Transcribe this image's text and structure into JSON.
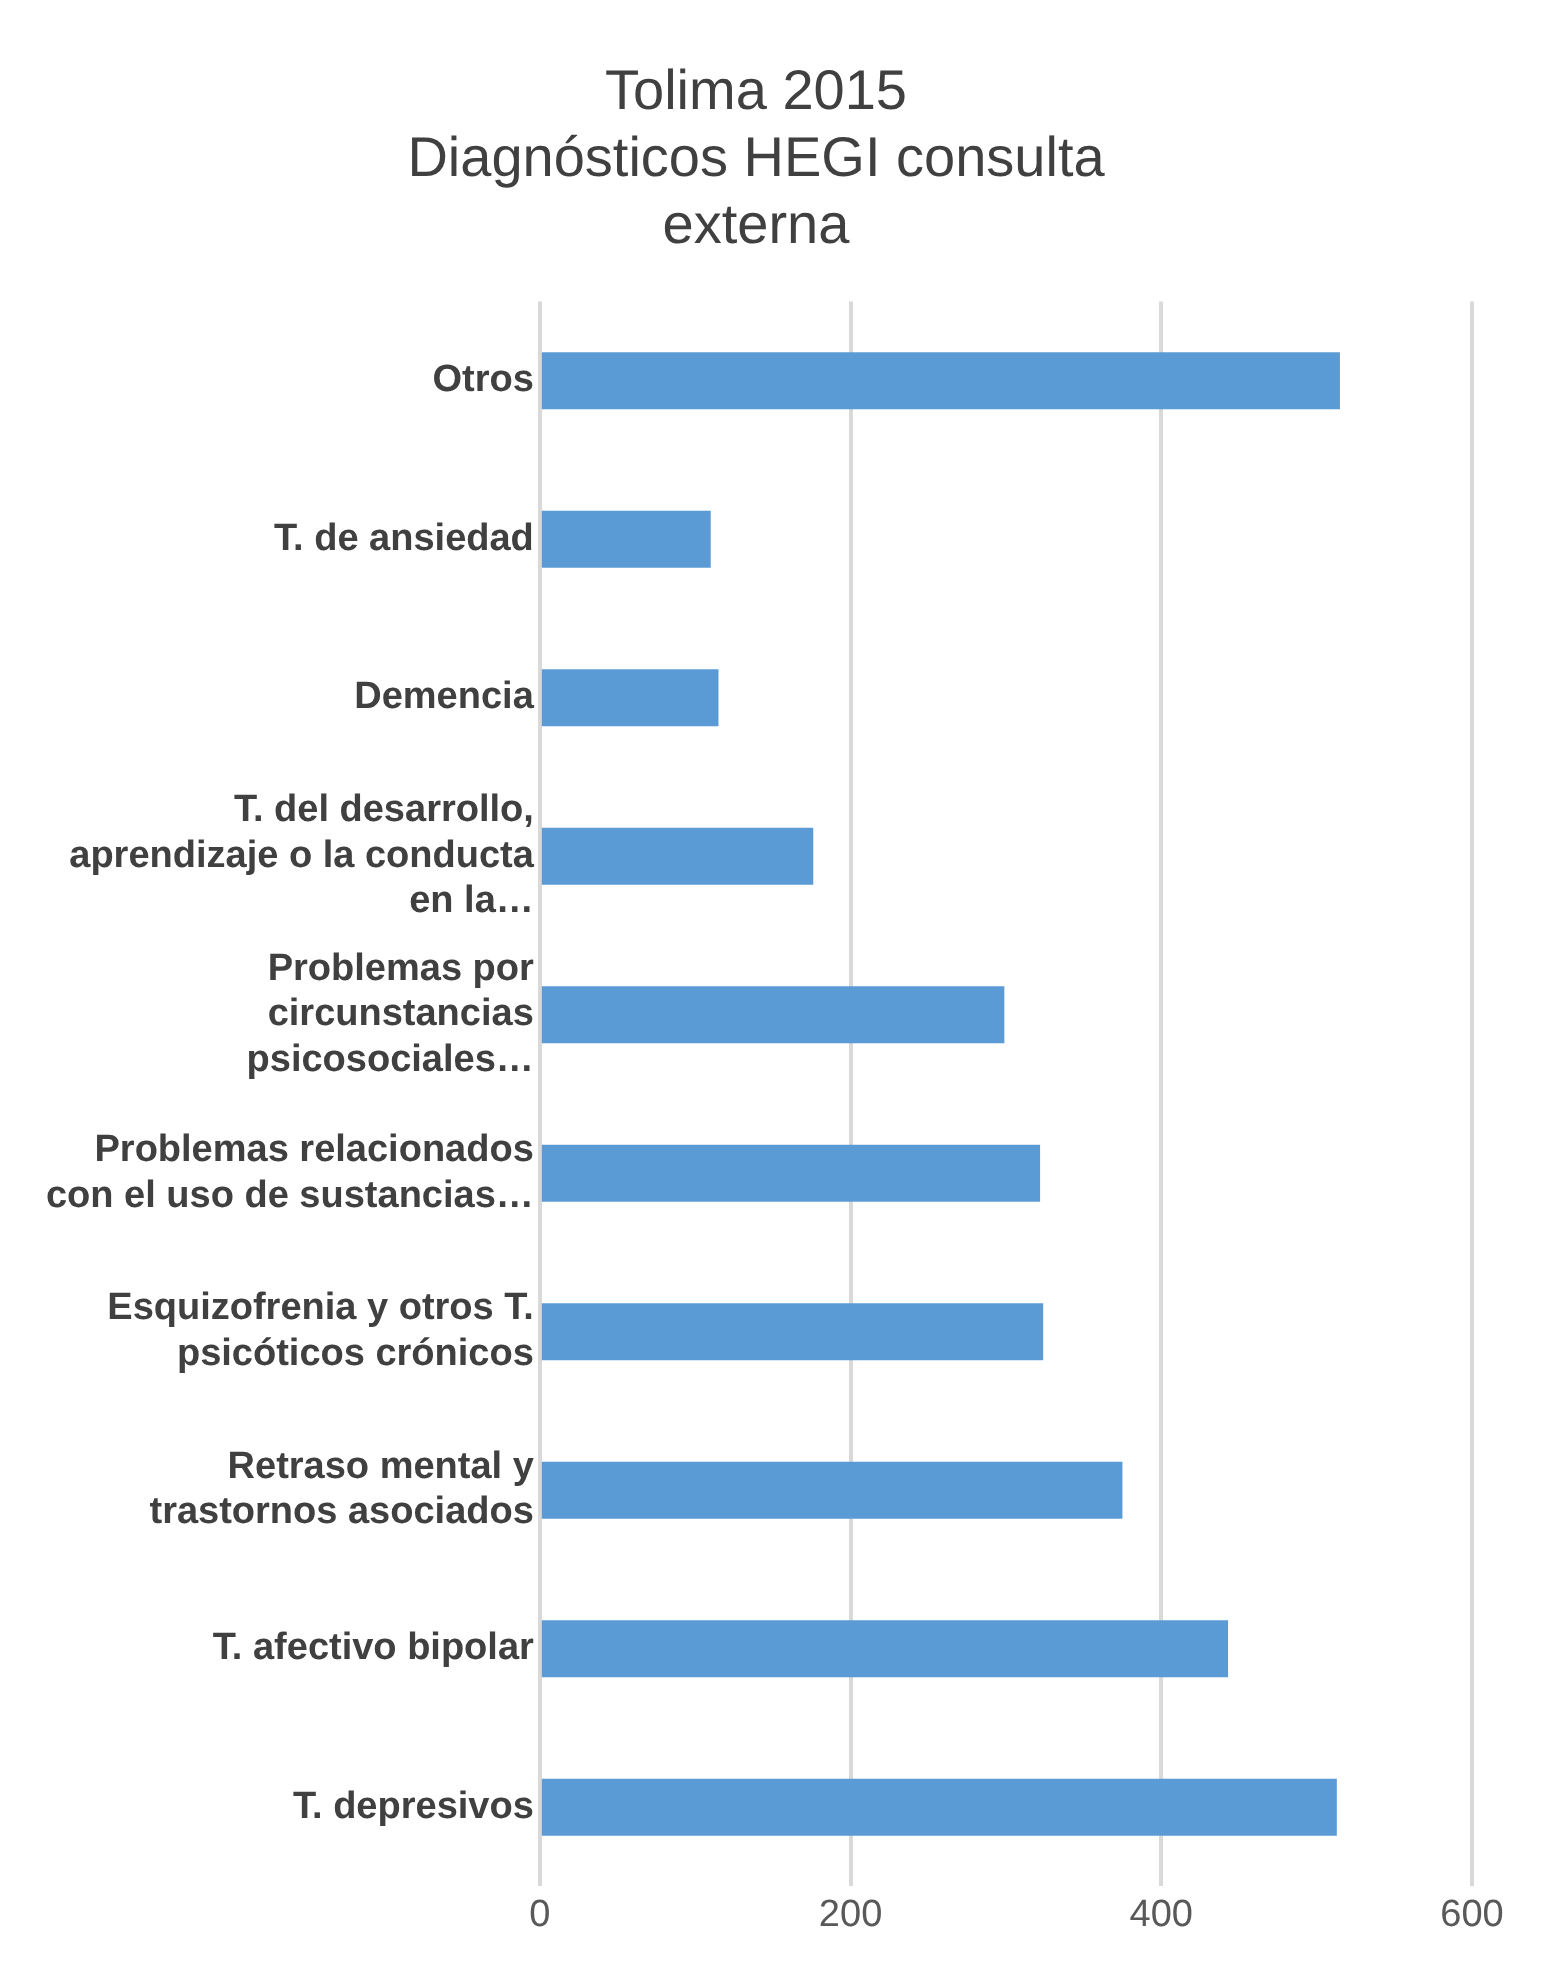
{
  "chart_data": {
    "type": "bar",
    "orientation": "horizontal",
    "title": "Tolima 2015\nDiagnósticos HEGI consulta externa",
    "categories": [
      "Otros",
      "T. de ansiedad",
      "Demencia",
      "T. del desarrollo, aprendizaje o la conducta en la…",
      "Problemas por circunstancias psicosociales…",
      "Problemas relacionados con el uso de sustancias…",
      "Esquizofrenia y otros T. psicóticos crónicos",
      "Retraso mental y trastornos asociados",
      "T. afectivo bipolar",
      "T. depresivos"
    ],
    "values": [
      515,
      110,
      115,
      176,
      299,
      322,
      324,
      375,
      443,
      513
    ],
    "color": "#5b9bd5",
    "xlim": [
      0,
      600
    ],
    "xticks": [
      0,
      200,
      400,
      600
    ],
    "grid": "x",
    "legend": false
  }
}
